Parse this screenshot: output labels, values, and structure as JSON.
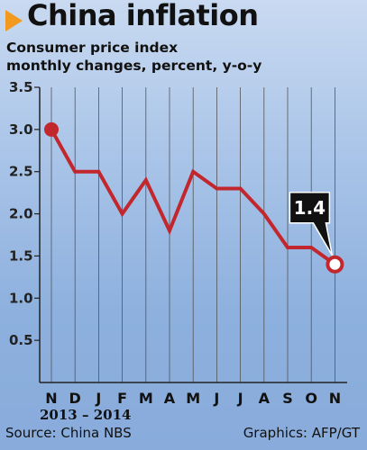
{
  "header": {
    "title": "China inflation",
    "subtitle_line1": "Consumer price index",
    "subtitle_line2": "monthly changes, percent, y-o-y"
  },
  "footer": {
    "period": "2013 – 2014",
    "source": "Source: China NBS",
    "credit": "Graphics: AFP/GT"
  },
  "colors": {
    "line": "#c1272d",
    "title_arrow": "#f29a1f",
    "callout_bg": "#111111",
    "grid": "#555555"
  },
  "chart_data": {
    "type": "line",
    "title": "China inflation",
    "subtitle": "Consumer price index monthly changes, percent, y-o-y",
    "categories": [
      "N",
      "D",
      "J",
      "F",
      "M",
      "A",
      "M",
      "J",
      "J",
      "A",
      "S",
      "O",
      "N"
    ],
    "series": [
      {
        "values": [
          3.0,
          2.5,
          2.5,
          2.0,
          2.4,
          1.8,
          2.5,
          2.3,
          2.3,
          2.0,
          1.6,
          1.6,
          1.4
        ]
      }
    ],
    "ylim": [
      0,
      3.5
    ],
    "yticks": [
      "0.5",
      "1.0",
      "1.5",
      "2.0",
      "2.5",
      "3.0",
      "3.5"
    ],
    "grid": "vertical",
    "annotation": {
      "text": "1.4",
      "index": 12
    }
  }
}
